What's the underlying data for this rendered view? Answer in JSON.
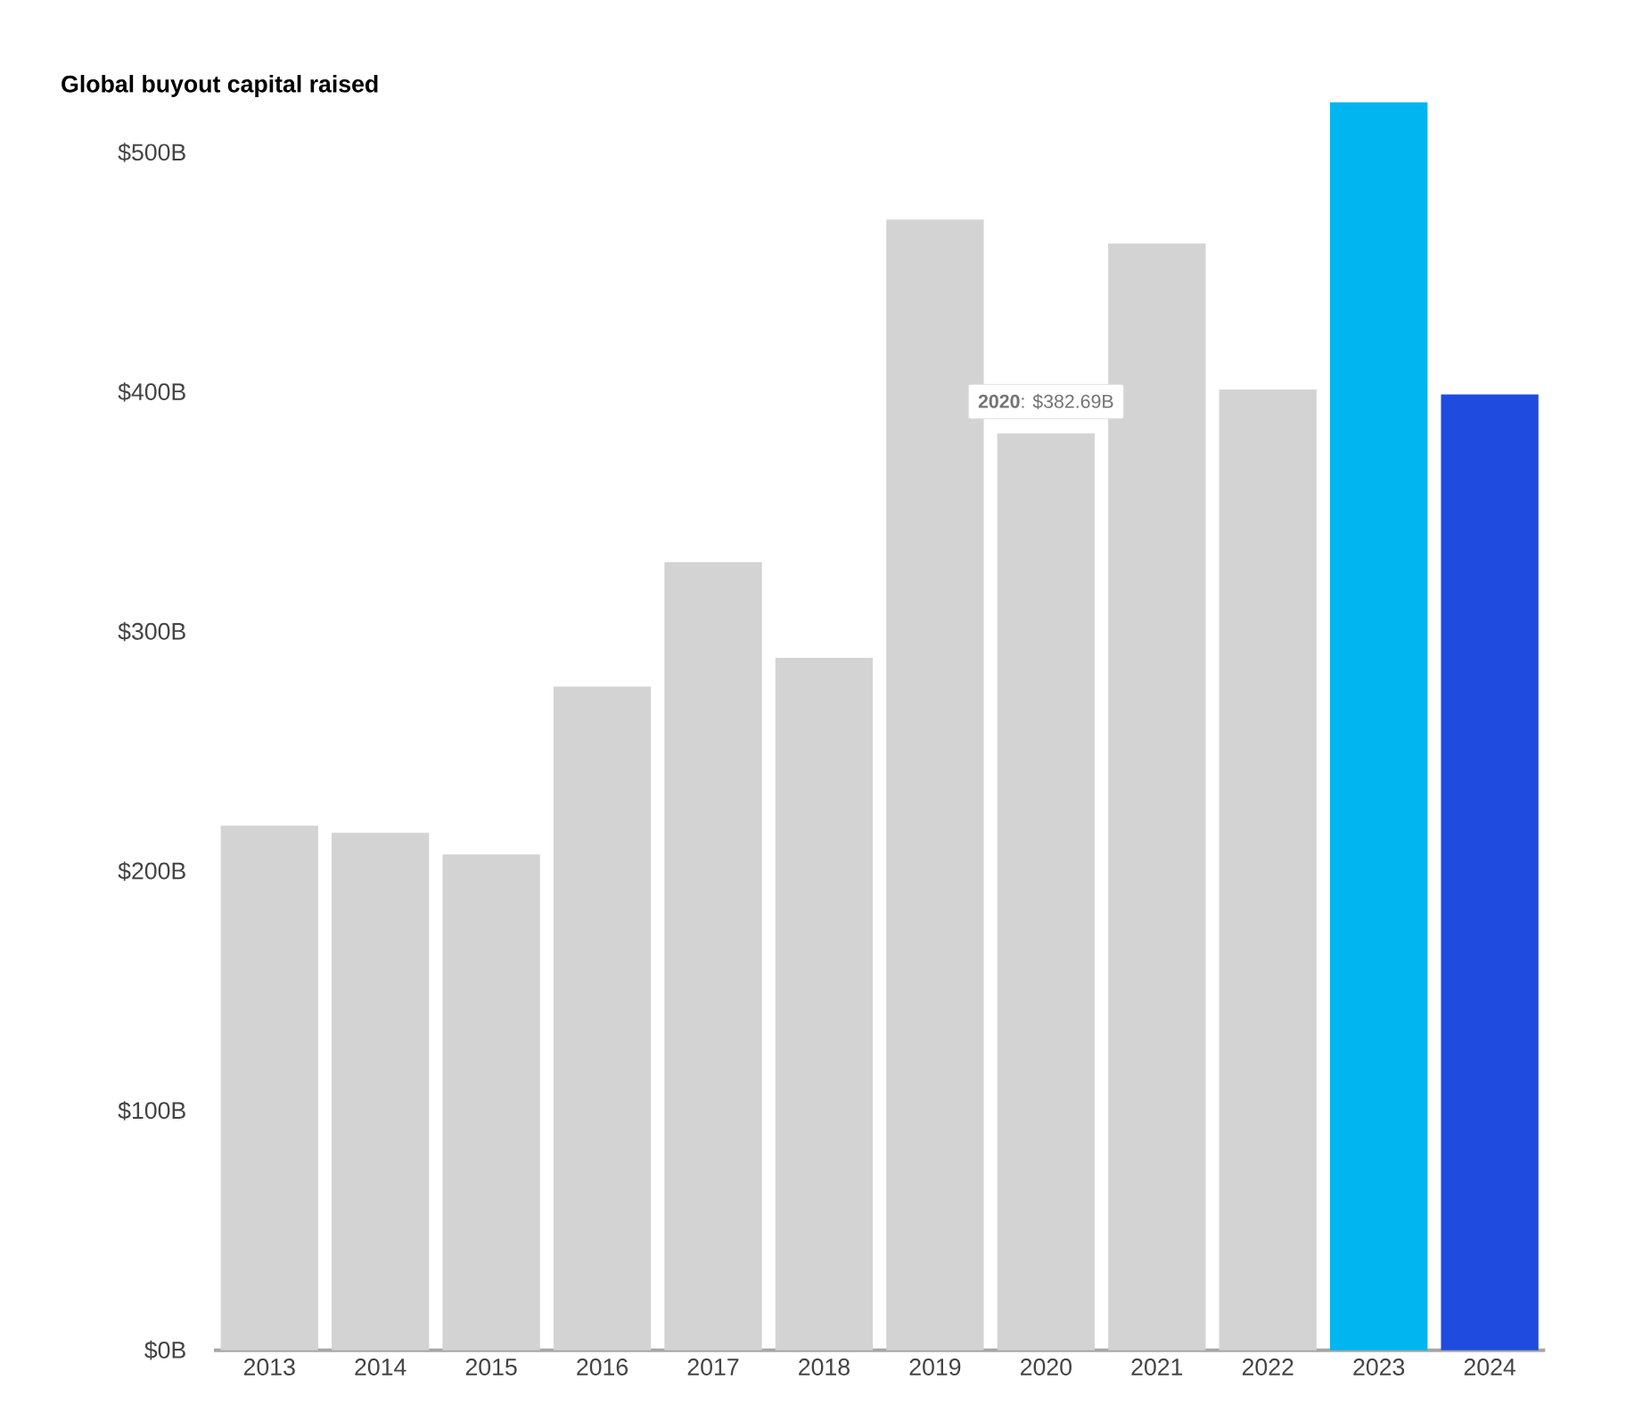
{
  "chart_data": {
    "type": "bar",
    "title": "Global buyout capital raised",
    "categories": [
      "2013",
      "2014",
      "2015",
      "2016",
      "2017",
      "2018",
      "2019",
      "2020",
      "2021",
      "2022",
      "2023",
      "2024"
    ],
    "values": [
      219,
      216,
      207,
      277,
      329,
      289,
      472,
      382.69,
      462,
      401,
      521,
      399
    ],
    "colors": [
      "#d3d3d3",
      "#d3d3d3",
      "#d3d3d3",
      "#d3d3d3",
      "#d3d3d3",
      "#d3d3d3",
      "#d3d3d3",
      "#d3d3d3",
      "#d3d3d3",
      "#d3d3d3",
      "#00b5f0",
      "#1f4bdf"
    ],
    "ylim": [
      0,
      521
    ],
    "yticks": [
      {
        "value": 0,
        "label": "$0B"
      },
      {
        "value": 100,
        "label": "$100B"
      },
      {
        "value": 200,
        "label": "$200B"
      },
      {
        "value": 300,
        "label": "$300B"
      },
      {
        "value": 400,
        "label": "$400B"
      },
      {
        "value": 500,
        "label": "$500B"
      }
    ],
    "annotations": [
      {
        "text": "**2020**: $382.69B",
        "x": "2020",
        "y": 382.69
      }
    ]
  }
}
